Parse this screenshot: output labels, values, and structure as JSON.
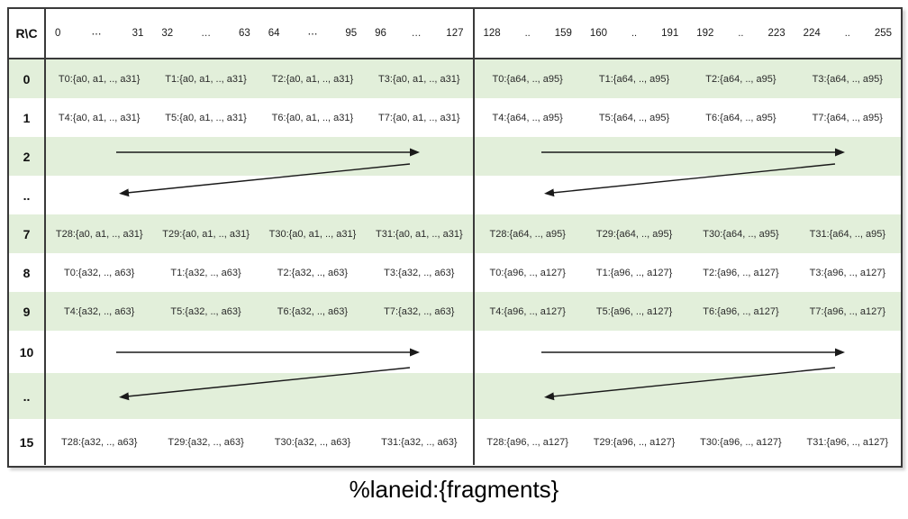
{
  "table": {
    "corner_label": "R\\C",
    "column_headers": [
      {
        "start": "0",
        "dots": "⋯",
        "end": "31"
      },
      {
        "start": "32",
        "dots": "…",
        "end": "63"
      },
      {
        "start": "64",
        "dots": "⋯",
        "end": "95"
      },
      {
        "start": "96",
        "dots": "…",
        "end": "127"
      },
      {
        "start": "128",
        "dots": "..",
        "end": "159"
      },
      {
        "start": "160",
        "dots": "..",
        "end": "191"
      },
      {
        "start": "192",
        "dots": "..",
        "end": "223"
      },
      {
        "start": "224",
        "dots": "..",
        "end": "255"
      }
    ],
    "rows": [
      {
        "label": "0",
        "type": "data",
        "cells": [
          "T0:{a0, a1, .., a31}",
          "T1:{a0, a1, .., a31}",
          "T2:{a0, a1, .., a31}",
          "T3:{a0, a1, .., a31}",
          "T0:{a64, .., a95}",
          "T1:{a64, .., a95}",
          "T2:{a64, .., a95}",
          "T3:{a64, .., a95}"
        ]
      },
      {
        "label": "1",
        "type": "data",
        "cells": [
          "T4:{a0, a1, .., a31}",
          "T5:{a0, a1, .., a31}",
          "T6:{a0, a1, .., a31}",
          "T7:{a0, a1, .., a31}",
          "T4:{a64, .., a95}",
          "T5:{a64, .., a95}",
          "T6:{a64, .., a95}",
          "T7:{a64, .., a95}"
        ]
      },
      {
        "label": "2",
        "type": "arrow",
        "cells": [
          "",
          "",
          "",
          "",
          "",
          "",
          "",
          ""
        ]
      },
      {
        "label": "..",
        "type": "arrow",
        "cells": [
          "",
          "",
          "",
          "",
          "",
          "",
          "",
          ""
        ]
      },
      {
        "label": "7",
        "type": "data",
        "cells": [
          "T28:{a0, a1, .., a31}",
          "T29:{a0, a1, .., a31}",
          "T30:{a0, a1, .., a31}",
          "T31:{a0, a1, .., a31}",
          "T28:{a64, .., a95}",
          "T29:{a64, .., a95}",
          "T30:{a64, .., a95}",
          "T31:{a64, .., a95}"
        ]
      },
      {
        "label": "8",
        "type": "data",
        "cells": [
          "T0:{a32, .., a63}",
          "T1:{a32, .., a63}",
          "T2:{a32, .., a63}",
          "T3:{a32, .., a63}",
          "T0:{a96, .., a127}",
          "T1:{a96, .., a127}",
          "T2:{a96, .., a127}",
          "T3:{a96, .., a127}"
        ]
      },
      {
        "label": "9",
        "type": "data",
        "cells": [
          "T4:{a32, .., a63}",
          "T5:{a32, .., a63}",
          "T6:{a32, .., a63}",
          "T7:{a32, .., a63}",
          "T4:{a96, .., a127}",
          "T5:{a96, .., a127}",
          "T6:{a96, .., a127}",
          "T7:{a96, .., a127}"
        ]
      },
      {
        "label": "10",
        "type": "arrow",
        "cells": [
          "",
          "",
          "",
          "",
          "",
          "",
          "",
          ""
        ]
      },
      {
        "label": "..",
        "type": "arrow",
        "cells": [
          "",
          "",
          "",
          "",
          "",
          "",
          "",
          ""
        ]
      },
      {
        "label": "15",
        "type": "data",
        "cells": [
          "T28:{a32, .., a63}",
          "T29:{a32, .., a63}",
          "T30:{a32, .., a63}",
          "T31:{a32, .., a63}",
          "T28:{a96, .., a127}",
          "T29:{a96, .., a127}",
          "T30:{a96, .., a127}",
          "T31:{a96, .., a127}"
        ]
      }
    ]
  },
  "footer": {
    "caption": "%laneid:{fragments}"
  },
  "colors": {
    "row_green": "#e2efda",
    "row_white": "#ffffff",
    "border_dark": "#3a3a3a",
    "arrow": "#1a1a1a"
  }
}
